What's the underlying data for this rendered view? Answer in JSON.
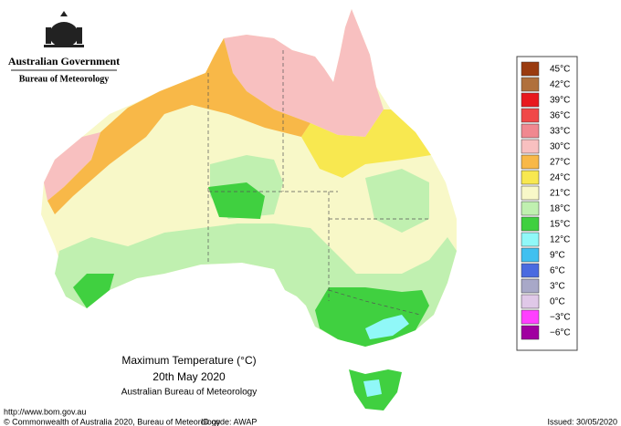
{
  "header": {
    "government": "Australian Government",
    "bureau": "Bureau of Meteorology"
  },
  "legend": {
    "items": [
      {
        "label": "45°C",
        "color": "#9a3b0f"
      },
      {
        "label": "42°C",
        "color": "#b0703c"
      },
      {
        "label": "39°C",
        "color": "#e8191e"
      },
      {
        "label": "36°C",
        "color": "#f04848"
      },
      {
        "label": "33°C",
        "color": "#f08890"
      },
      {
        "label": "30°C",
        "color": "#f8c0c0"
      },
      {
        "label": "27°C",
        "color": "#f8b848"
      },
      {
        "label": "24°C",
        "color": "#f8e850"
      },
      {
        "label": "21°C",
        "color": "#f8f8c8"
      },
      {
        "label": "18°C",
        "color": "#c0f0b0"
      },
      {
        "label": "15°C",
        "color": "#40d040"
      },
      {
        "label": "12°C",
        "color": "#90f8f8"
      },
      {
        "label": "9°C",
        "color": "#40c0f0"
      },
      {
        "label": "6°C",
        "color": "#4a6ae0"
      },
      {
        "label": "3°C",
        "color": "#a8a8c8"
      },
      {
        "label": "0°C",
        "color": "#e0c8e8"
      },
      {
        "label": "−3°C",
        "color": "#ff40ff"
      },
      {
        "label": "−6°C",
        "color": "#a000a0"
      }
    ]
  },
  "title": {
    "line1": "Maximum Temperature (°C)",
    "line2": "20th May 2020",
    "line3": "Australian Bureau of Meteorology"
  },
  "footer": {
    "url": "http://www.bom.gov.au",
    "copyright": "© Commonwealth of Australia 2020, Bureau of Meteorology",
    "id_code": "ID code: AWAP",
    "issued": "Issued: 30/05/2020"
  }
}
